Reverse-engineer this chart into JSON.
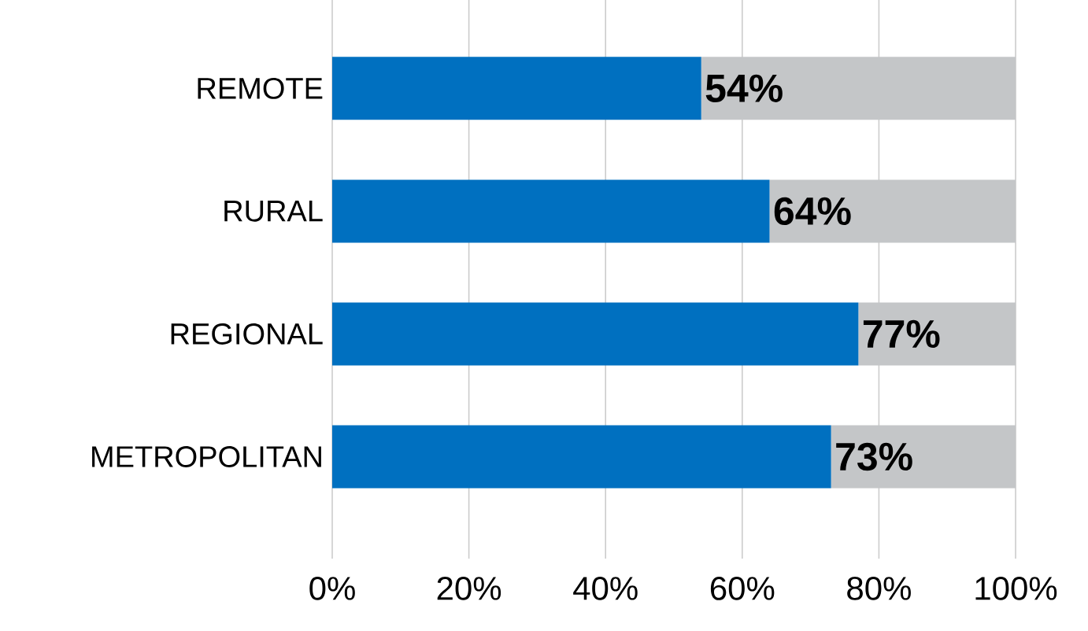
{
  "chart_data": {
    "type": "bar",
    "orientation": "horizontal",
    "stacked": true,
    "grid": "x",
    "categories": [
      "REMOTE",
      "RURAL",
      "REGIONAL",
      "METROPOLITAN"
    ],
    "series": [
      {
        "color": "#0070c0",
        "values": [
          54,
          64,
          77,
          73
        ],
        "value_labels": [
          "54%",
          "64%",
          "77%",
          "73%"
        ]
      },
      {
        "color": "#c4c6c8",
        "values": [
          46,
          36,
          23,
          27
        ]
      }
    ],
    "xlim": [
      0,
      100
    ],
    "xticks": [
      {
        "value": 0,
        "label": "0%"
      },
      {
        "value": 20,
        "label": "20%"
      },
      {
        "value": 40,
        "label": "40%"
      },
      {
        "value": 60,
        "label": "60%"
      },
      {
        "value": 80,
        "label": "80%"
      },
      {
        "value": 100,
        "label": "100%"
      }
    ]
  }
}
